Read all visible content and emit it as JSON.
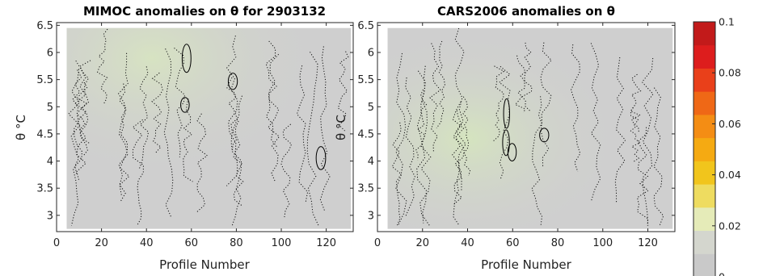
{
  "colors": {
    "background_field": "#cfcfcf",
    "field_tint": "#d6e0c4",
    "contour": "#000000"
  },
  "chart_data": [
    {
      "type": "heatmap",
      "title": "MIMOC anomalies on θ  for 2903132",
      "xlabel": "Profile Number",
      "ylabel": "θ °C",
      "xlim": [
        0,
        132
      ],
      "ylim": [
        2.7,
        6.55
      ],
      "xticks": [
        "0",
        "20",
        "40",
        "60",
        "80",
        "100",
        "120"
      ],
      "yticks": [
        "3",
        "3.5",
        "4",
        "4.5",
        "5",
        "5.5",
        "6",
        "6.5"
      ],
      "x_extent": [
        4.5,
        131
      ],
      "theta_range": [
        2.75,
        6.45
      ]
    },
    {
      "type": "heatmap",
      "title": "CARS2006 anomalies on θ",
      "xlabel": "Profile Number",
      "ylabel": "θ °C",
      "xlim": [
        0,
        132
      ],
      "ylim": [
        2.7,
        6.55
      ],
      "xticks": [
        "0",
        "20",
        "40",
        "60",
        "80",
        "100",
        "120"
      ],
      "yticks": [
        "3",
        "3.5",
        "4",
        "4.5",
        "5",
        "5.5",
        "6",
        "6.5"
      ],
      "x_extent": [
        4.5,
        131
      ],
      "theta_range": [
        2.75,
        6.45
      ]
    }
  ],
  "colorbar": {
    "range": [
      0,
      0.1
    ],
    "ticks": [
      "0",
      "0.02",
      "0.04",
      "0.06",
      "0.08",
      "0.1"
    ],
    "levels": [
      "#c9c9c9",
      "#d4d6ce",
      "#e5ebb8",
      "#eedc60",
      "#f1c51c",
      "#f5aa12",
      "#f48d14",
      "#ef6816",
      "#e9401a",
      "#dd1d1d",
      "#c21a1a"
    ]
  }
}
